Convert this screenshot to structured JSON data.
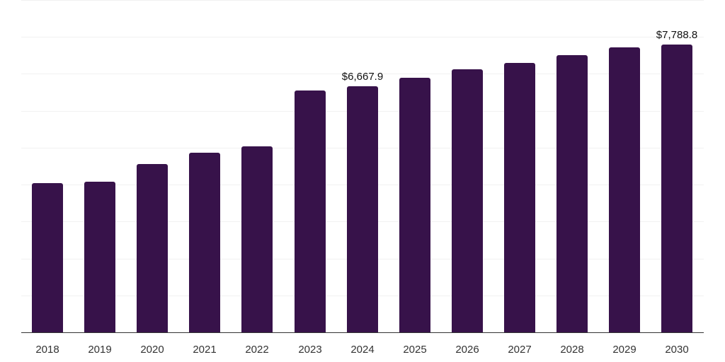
{
  "chart_data": {
    "type": "bar",
    "title": "",
    "xlabel": "",
    "ylabel": "",
    "categories": [
      "2018",
      "2019",
      "2020",
      "2021",
      "2022",
      "2023",
      "2024",
      "2025",
      "2026",
      "2027",
      "2028",
      "2029",
      "2030"
    ],
    "values": [
      4045,
      4085,
      4565,
      4870,
      5045,
      6555,
      6667.9,
      6885,
      7115,
      7305,
      7500,
      7710,
      7788.8
    ],
    "data_labels": [
      {
        "category": "2024",
        "text": "$6,667.9"
      },
      {
        "category": "2030",
        "text": "$7,788.8"
      }
    ],
    "ylim": [
      0,
      9000
    ],
    "grid": true,
    "legend": null,
    "color": "#37124a",
    "units": "USD"
  }
}
